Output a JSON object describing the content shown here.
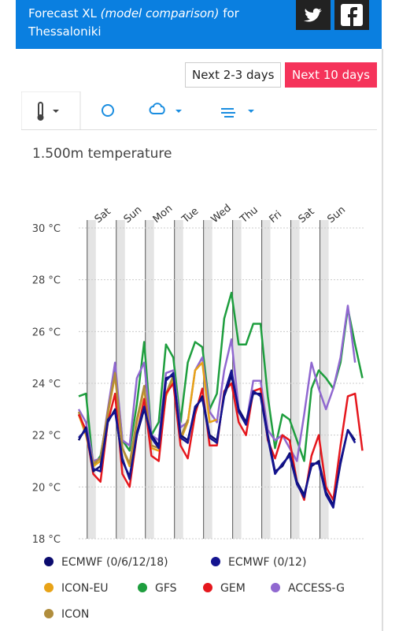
{
  "header": {
    "title": "Forecast XL",
    "subtitle": "(model comparison)",
    "connector": "for",
    "location": "Thessaloniki"
  },
  "range_buttons": [
    "Next 2-3 days",
    "Next 10 days"
  ],
  "chart_data": {
    "type": "line",
    "title": "1.500m temperature",
    "x": [
      0,
      6,
      12,
      18,
      24,
      30,
      36,
      42,
      48,
      54,
      60,
      66,
      72,
      78,
      84,
      90,
      96,
      102,
      108,
      114,
      120,
      126,
      132,
      138,
      144,
      150,
      156,
      162,
      168,
      174,
      180,
      186,
      192,
      198,
      204,
      210,
      216,
      222,
      228,
      234
    ],
    "xlim": [
      0,
      235
    ],
    "xticks": [
      {
        "value": 7,
        "label": "Sat"
      },
      {
        "value": 31,
        "label": "Sun"
      },
      {
        "value": 55,
        "label": "Mon"
      },
      {
        "value": 79,
        "label": "Tue"
      },
      {
        "value": 103,
        "label": "Wed"
      },
      {
        "value": 127,
        "label": "Thu"
      },
      {
        "value": 151,
        "label": "Fri"
      },
      {
        "value": 175,
        "label": "Sat"
      },
      {
        "value": 199,
        "label": "Sun"
      }
    ],
    "ylim": [
      18,
      30
    ],
    "yticks": [
      {
        "value": 18,
        "label": "18 °C"
      },
      {
        "value": 20,
        "label": "20 °C"
      },
      {
        "value": 22,
        "label": "22 °C"
      },
      {
        "value": 24,
        "label": "24 °C"
      },
      {
        "value": 26,
        "label": "26 °C"
      },
      {
        "value": 28,
        "label": "28 °C"
      },
      {
        "value": 30,
        "label": "30 °C"
      }
    ],
    "grid": true,
    "series": [
      {
        "name": "ECMWF (0/6/12/18)",
        "color": "#0b0b6e",
        "values": [
          21.8,
          22.3,
          20.6,
          20.8,
          22.5,
          23.0,
          21.0,
          20.4,
          22.0,
          23.0,
          22.0,
          21.6,
          24.2,
          24.3,
          22.0,
          21.8,
          23.0,
          23.5,
          22.0,
          21.8,
          23.5,
          24.3,
          23.0,
          22.5,
          23.6,
          23.6,
          22.0,
          20.6,
          20.8,
          21.3,
          20.2,
          19.7,
          20.8,
          21.0,
          19.8,
          19.3,
          20.9,
          22.2,
          21.8,
          null
        ]
      },
      {
        "name": "ECMWF (0/12)",
        "color": "#141490",
        "values": [
          21.9,
          22.2,
          20.7,
          20.6,
          22.6,
          22.9,
          21.1,
          20.3,
          22.1,
          23.1,
          21.9,
          21.5,
          24.1,
          24.4,
          21.9,
          21.7,
          23.1,
          23.4,
          21.9,
          21.7,
          23.6,
          24.5,
          22.9,
          22.4,
          23.7,
          23.5,
          21.9,
          20.5,
          20.9,
          21.2,
          20.1,
          19.6,
          20.9,
          20.9,
          19.7,
          19.2,
          21.0,
          22.2,
          21.7,
          null
        ]
      },
      {
        "name": "ICON-EU",
        "color": "#e8a317",
        "values": [
          22.8,
          22.0,
          20.8,
          21.0,
          22.8,
          24.3,
          21.5,
          20.8,
          22.5,
          23.8,
          21.5,
          21.4,
          23.5,
          24.2,
          21.8,
          22.5,
          24.5,
          24.8,
          22.5,
          22.6,
          null,
          null,
          null,
          null,
          null,
          null,
          null,
          null,
          null,
          null,
          null,
          null,
          null,
          null,
          null,
          null,
          null,
          null,
          null,
          null
        ]
      },
      {
        "name": "GFS",
        "color": "#1e9e3e",
        "values": [
          23.5,
          23.6,
          20.8,
          21.2,
          22.8,
          24.6,
          21.8,
          21.4,
          23.2,
          25.6,
          22.0,
          22.5,
          25.5,
          25.0,
          22.5,
          24.8,
          25.6,
          25.4,
          23.0,
          23.6,
          26.5,
          27.5,
          25.5,
          25.5,
          26.3,
          26.3,
          23.5,
          21.5,
          22.8,
          22.6,
          21.8,
          21.0,
          23.8,
          24.5,
          24.2,
          23.8,
          24.8,
          26.9,
          25.5,
          24.2
        ]
      },
      {
        "name": "GEM",
        "color": "#e5171d",
        "values": [
          22.8,
          22.2,
          20.5,
          20.2,
          22.5,
          23.6,
          20.5,
          20.0,
          22.0,
          23.4,
          21.2,
          21.0,
          23.6,
          24.0,
          21.6,
          21.1,
          22.8,
          23.8,
          21.6,
          21.6,
          23.7,
          24.0,
          22.5,
          22.0,
          23.7,
          23.8,
          21.8,
          21.1,
          22.0,
          21.8,
          20.2,
          19.5,
          21.2,
          22.0,
          20.0,
          19.5,
          21.6,
          23.5,
          23.6,
          21.4
        ]
      },
      {
        "name": "ACCESS-G",
        "color": "#9068d0",
        "values": [
          23.0,
          22.5,
          21.0,
          21.1,
          23.0,
          24.8,
          21.8,
          21.6,
          24.2,
          24.8,
          22.0,
          21.8,
          24.4,
          24.5,
          22.3,
          22.5,
          24.5,
          25.0,
          22.9,
          22.5,
          24.5,
          25.7,
          23.0,
          22.4,
          24.1,
          24.1,
          22.2,
          21.8,
          22.0,
          21.5,
          21.0,
          22.8,
          24.8,
          23.8,
          23.0,
          23.8,
          25.0,
          27.0,
          24.8,
          null
        ]
      },
      {
        "name": "ICON",
        "color": "#b08d3c",
        "values": [
          22.9,
          22.1,
          20.9,
          21.1,
          22.9,
          24.4,
          21.5,
          20.9,
          22.6,
          23.9,
          21.6,
          21.5,
          23.6,
          24.3,
          21.9,
          22.6,
          null,
          null,
          null,
          null,
          null,
          null,
          null,
          null,
          null,
          null,
          null,
          null,
          null,
          null,
          null,
          null,
          null,
          null,
          null,
          null,
          null,
          null,
          null,
          null
        ]
      }
    ]
  }
}
